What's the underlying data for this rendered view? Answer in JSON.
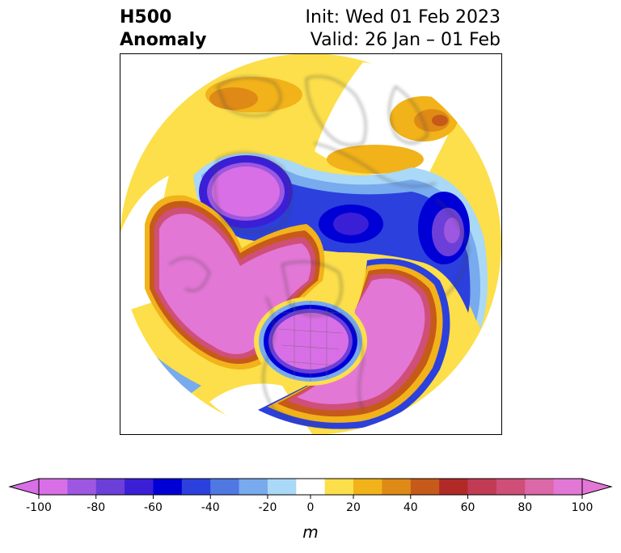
{
  "title": {
    "left_line1": "H500",
    "left_line2": "Anomaly",
    "right_line1": "Init: Wed 01 Feb 2023",
    "right_line2": "Valid: 26 Jan – 01 Feb"
  },
  "colorbar": {
    "levels": [
      -100,
      -90,
      -80,
      -70,
      -60,
      -50,
      -40,
      -30,
      -20,
      -10,
      10,
      20,
      30,
      40,
      50,
      60,
      70,
      80,
      90,
      100
    ],
    "colors": [
      "#d96fe6",
      "#9d57e0",
      "#6b3fd8",
      "#3b1fd6",
      "#0000d6",
      "#2b40dd",
      "#4f78e3",
      "#78aaee",
      "#aad8f7",
      "#ffffff",
      "#fcdf4a",
      "#f2b21a",
      "#df8a16",
      "#c65a1a",
      "#b22a27",
      "#c23b55",
      "#cf4f78",
      "#db68a8",
      "#e377d6"
    ],
    "ticks": [
      "-100",
      "-80",
      "-60",
      "-40",
      "-20",
      "0",
      "20",
      "40",
      "60",
      "80",
      "100"
    ],
    "units_label": "m",
    "extend": "both"
  },
  "map": {
    "projection": "north-polar-stereographic",
    "coastline_color": "#444444"
  }
}
